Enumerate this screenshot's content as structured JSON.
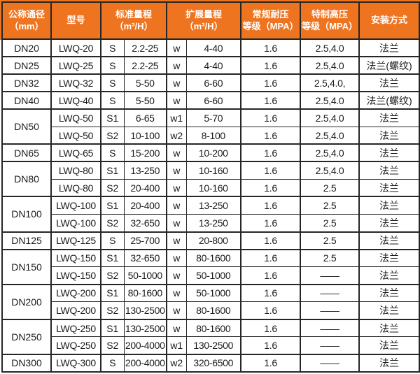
{
  "colors": {
    "header_bg": "#EE7420",
    "header_text": "#ffffff",
    "border": "#262626",
    "body_text": "#1a1a1a",
    "body_bg": "#ffffff"
  },
  "table": {
    "header": [
      {
        "label": "公称通径\n（mm）",
        "colspan": 1
      },
      {
        "label": "型号",
        "colspan": 1
      },
      {
        "label": "标准量程\n（m³/H）",
        "colspan": 2
      },
      {
        "label": "扩展量程\n（m³/H）",
        "colspan": 2
      },
      {
        "label": "常规耐压\n等级（MPA）",
        "colspan": 1
      },
      {
        "label": "特制高压\n等级（MPA）",
        "colspan": 1
      },
      {
        "label": "安装方式",
        "colspan": 1
      }
    ],
    "groups": [
      {
        "dn": "DN20",
        "rows": [
          {
            "model": "LWQ-20",
            "s_label": "S",
            "standard": "2.2-25",
            "w_label": "w",
            "extended": "4-40",
            "regular_mpa": "1.6",
            "high_mpa": "2.5,4.0",
            "install": "法兰"
          }
        ]
      },
      {
        "dn": "DN25",
        "rows": [
          {
            "model": "LWQ-25",
            "s_label": "S",
            "standard": "2.2-25",
            "w_label": "w",
            "extended": "4-40",
            "regular_mpa": "1.6",
            "high_mpa": "2.5,4.0",
            "install": "法兰(螺纹)"
          }
        ]
      },
      {
        "dn": "DN32",
        "rows": [
          {
            "model": "LWQ-32",
            "s_label": "S",
            "standard": "5-50",
            "w_label": "w",
            "extended": "6-60",
            "regular_mpa": "1.6",
            "high_mpa": "2.5,4.0,",
            "install": "法兰"
          }
        ]
      },
      {
        "dn": "DN40",
        "rows": [
          {
            "model": "LWQ-40",
            "s_label": "S",
            "standard": "5-50",
            "w_label": "w",
            "extended": "6-60",
            "regular_mpa": "1.6",
            "high_mpa": "2.5,4.0",
            "install": "法兰(螺纹)"
          }
        ]
      },
      {
        "dn": "DN50",
        "rows": [
          {
            "model": "LWQ-50",
            "s_label": "S1",
            "standard": "6-65",
            "w_label": "w1",
            "extended": "5-70",
            "regular_mpa": "1.6",
            "high_mpa": "2.5,4.0",
            "install": "法兰"
          },
          {
            "model": "LWQ-50",
            "s_label": "S2",
            "standard": "10-100",
            "w_label": "w2",
            "extended": "8-100",
            "regular_mpa": "1.6",
            "high_mpa": "2.5,4.0",
            "install": "法兰"
          }
        ]
      },
      {
        "dn": "DN65",
        "rows": [
          {
            "model": "LWQ-65",
            "s_label": "S",
            "standard": "15-200",
            "w_label": "w",
            "extended": "10-200",
            "regular_mpa": "1.6",
            "high_mpa": "2.5,4.0",
            "install": "法兰"
          }
        ]
      },
      {
        "dn": "DN80",
        "rows": [
          {
            "model": "LWQ-80",
            "s_label": "S1",
            "standard": "13-250",
            "w_label": "w",
            "extended": "10-160",
            "regular_mpa": "1.6",
            "high_mpa": "2.5,4.0",
            "install": "法兰"
          },
          {
            "model": "LWQ-80",
            "s_label": "S2",
            "standard": "20-400",
            "w_label": "w",
            "extended": "10-160",
            "regular_mpa": "1.6",
            "high_mpa": "2.5",
            "install": "法兰"
          }
        ]
      },
      {
        "dn": "DN100",
        "rows": [
          {
            "model": "LWQ-100",
            "s_label": "S1",
            "standard": "20-400",
            "w_label": "w",
            "extended": "13-250",
            "regular_mpa": "1.6",
            "high_mpa": "2.5",
            "install": "法兰"
          },
          {
            "model": "LWQ-100",
            "s_label": "S2",
            "standard": "32-650",
            "w_label": "w",
            "extended": "13-250",
            "regular_mpa": "1.6",
            "high_mpa": "2.5",
            "install": "法兰"
          }
        ]
      },
      {
        "dn": "DN125",
        "rows": [
          {
            "model": "LWQ-125",
            "s_label": "S",
            "standard": "25-700",
            "w_label": "w",
            "extended": "20-800",
            "regular_mpa": "1.6",
            "high_mpa": "2.5",
            "install": "法兰"
          }
        ]
      },
      {
        "dn": "DN150",
        "rows": [
          {
            "model": "LWQ-150",
            "s_label": "S1",
            "standard": "32-650",
            "w_label": "w",
            "extended": "80-1600",
            "regular_mpa": "1.6",
            "high_mpa": "2.5",
            "install": "法兰"
          },
          {
            "model": "LWQ-150",
            "s_label": "S2",
            "standard": "50-1000",
            "w_label": "w",
            "extended": "50-1000",
            "regular_mpa": "1.6",
            "high_mpa": "——",
            "install": "法兰"
          }
        ]
      },
      {
        "dn": "DN200",
        "rows": [
          {
            "model": "LWQ-200",
            "s_label": "S1",
            "standard": "80-1600",
            "w_label": "w",
            "extended": "50-1000",
            "regular_mpa": "1.6",
            "high_mpa": "——",
            "install": "法兰"
          },
          {
            "model": "LWQ-200",
            "s_label": "S2",
            "standard": "130-2500",
            "w_label": "w",
            "extended": "80-1600",
            "regular_mpa": "1.6",
            "high_mpa": "——",
            "install": "法兰"
          }
        ]
      },
      {
        "dn": "DN250",
        "rows": [
          {
            "model": "LWQ-250",
            "s_label": "S1",
            "standard": "130-2500",
            "w_label": "w",
            "extended": "80-1600",
            "regular_mpa": "1.6",
            "high_mpa": "——",
            "install": "法兰"
          },
          {
            "model": "LWQ-250",
            "s_label": "S2",
            "standard": "200-4000",
            "w_label": "w1",
            "extended": "130-2500",
            "regular_mpa": "1.6",
            "high_mpa": "——",
            "install": "法兰"
          }
        ]
      },
      {
        "dn": "DN300",
        "rows": [
          {
            "model": "LWQ-300",
            "s_label": "S",
            "standard": "200-4000",
            "w_label": "w2",
            "extended": "320-6500",
            "regular_mpa": "1.6",
            "high_mpa": "——",
            "install": "法兰"
          }
        ]
      }
    ]
  }
}
